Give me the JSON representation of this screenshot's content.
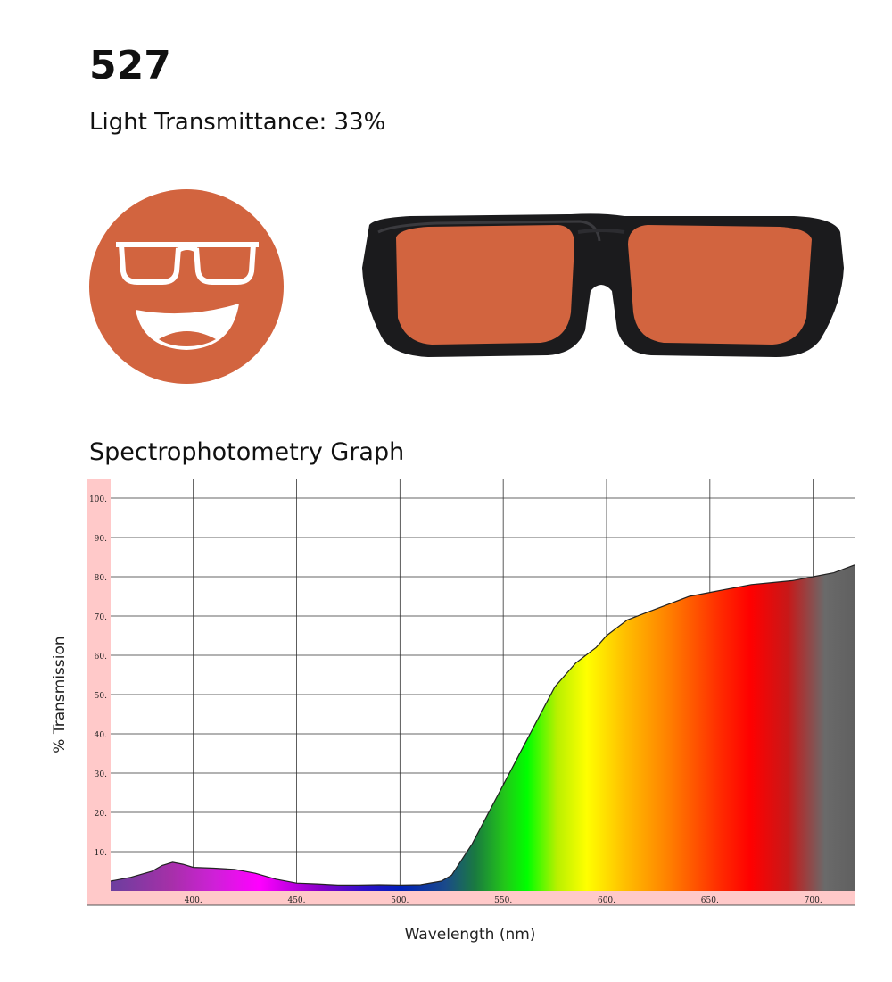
{
  "header": {
    "title": "527",
    "light_transmittance": "Light Transmittance: 33%"
  },
  "tint_color": "#D2643F",
  "frame_color": "#1B1B1D",
  "icons": [
    "smiling-face-with-glasses-icon",
    "sunglasses-product-image"
  ],
  "graph_title": "Spectrophotometry Graph",
  "chart_data": {
    "type": "area",
    "title": "Spectrophotometry Graph",
    "xlabel": "Wavelength (nm)",
    "ylabel": "% Transmission",
    "xlim": [
      360,
      720
    ],
    "ylim": [
      0,
      105
    ],
    "x_ticks": [
      400,
      450,
      500,
      550,
      600,
      650,
      700
    ],
    "x_tick_labels": [
      "400.",
      "450.",
      "500.",
      "550.",
      "600.",
      "650.",
      "700."
    ],
    "y_ticks": [
      10,
      20,
      30,
      40,
      50,
      60,
      70,
      80,
      90,
      100
    ],
    "y_tick_labels": [
      "10.",
      "20.",
      "30.",
      "40.",
      "50.",
      "60.",
      "70.",
      "80.",
      "90.",
      "100."
    ],
    "grid": true,
    "series": [
      {
        "x": [
          360,
          370,
          380,
          385,
          390,
          395,
          400,
          410,
          420,
          430,
          440,
          450,
          460,
          470,
          480,
          490,
          500,
          510,
          520,
          525,
          530,
          535,
          540,
          545,
          550,
          555,
          560,
          565,
          570,
          575,
          580,
          585,
          590,
          595,
          600,
          610,
          620,
          630,
          640,
          650,
          660,
          670,
          680,
          690,
          700,
          710,
          720
        ],
        "y": [
          2.5,
          3.5,
          5,
          6.5,
          7.3,
          6.8,
          6,
          5.8,
          5.5,
          4.5,
          3,
          2,
          1.8,
          1.5,
          1.5,
          1.6,
          1.5,
          1.6,
          2.5,
          4,
          8,
          12,
          17,
          22,
          27,
          32,
          37,
          42,
          47,
          52,
          55,
          58,
          60,
          62,
          65,
          69,
          71,
          73,
          75,
          76,
          77,
          78,
          78.5,
          79,
          80,
          81,
          83
        ]
      }
    ]
  }
}
